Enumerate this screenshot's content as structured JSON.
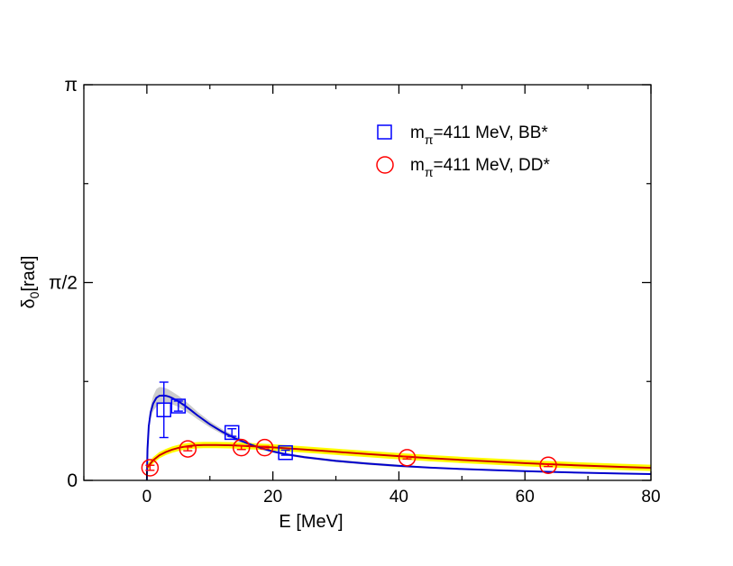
{
  "chart_data": {
    "type": "scatter",
    "title": "",
    "xlabel": "E [MeV]",
    "ylabel": {
      "main": "δ",
      "sub": "0",
      "unit": "[rad]"
    },
    "xlim": [
      -10,
      80
    ],
    "ylim": [
      0,
      3.14159
    ],
    "xticks": [
      0,
      20,
      40,
      60,
      80
    ],
    "xtick_labels": [
      "0",
      "20",
      "40",
      "60",
      "80"
    ],
    "yticks": [
      0,
      1.5708,
      3.14159
    ],
    "ytick_labels": [
      "0",
      "π/2",
      "π"
    ],
    "grid": false,
    "legend_position": "top-right",
    "series": [
      {
        "name": "BB*",
        "legend": {
          "pre": "m",
          "sub": "π",
          "post": "=411 MeV, BB*"
        },
        "marker": "square",
        "color": "#0000ff",
        "points": [
          {
            "x": 2.7,
            "y": 0.56,
            "yerr": 0.22
          },
          {
            "x": 5.0,
            "y": 0.59,
            "yerr": 0.04
          },
          {
            "x": 13.5,
            "y": 0.38,
            "yerr": 0.03
          },
          {
            "x": 22.0,
            "y": 0.22,
            "yerr": 0.02
          }
        ],
        "fit": {
          "x": [
            0,
            0.1,
            0.3,
            0.6,
            1,
            1.5,
            2,
            2.5,
            3,
            3.5,
            4,
            5,
            6,
            7,
            8,
            10,
            12,
            14,
            16,
            18,
            20,
            22,
            25,
            30,
            35,
            40,
            45,
            50,
            55,
            60,
            65,
            70,
            75,
            80
          ],
          "y": [
            0,
            0.25,
            0.43,
            0.54,
            0.61,
            0.655,
            0.672,
            0.674,
            0.672,
            0.665,
            0.655,
            0.628,
            0.594,
            0.557,
            0.517,
            0.445,
            0.385,
            0.334,
            0.293,
            0.258,
            0.23,
            0.208,
            0.184,
            0.155,
            0.133,
            0.115,
            0.101,
            0.09,
            0.081,
            0.073,
            0.066,
            0.06,
            0.055,
            0.05
          ],
          "band_width": [
            0,
            0.02,
            0.03,
            0.05,
            0.06,
            0.07,
            0.07,
            0.065,
            0.06,
            0.055,
            0.05,
            0.045,
            0.04,
            0.035,
            0.03,
            0.025,
            0.02,
            0.02,
            0.015,
            0.015,
            0.01,
            0.01,
            0.01,
            0.01,
            0.01,
            0.01,
            0.005,
            0.005,
            0.005,
            0.005,
            0.005,
            0.005,
            0.005,
            0.005
          ],
          "color": "#0000cc",
          "band_color": "#cccccc"
        }
      },
      {
        "name": "DD*",
        "legend": {
          "pre": "m",
          "sub": "π",
          "post": "=411 MeV, DD*"
        },
        "marker": "circle",
        "color": "#ff0000",
        "points": [
          {
            "x": 0.5,
            "y": 0.1,
            "yerr": 0.02
          },
          {
            "x": 6.5,
            "y": 0.25,
            "yerr": 0.015
          },
          {
            "x": 15.0,
            "y": 0.26,
            "yerr": 0.015
          },
          {
            "x": 18.7,
            "y": 0.26,
            "yerr": 0.01
          },
          {
            "x": 41.3,
            "y": 0.18,
            "yerr": 0.01
          },
          {
            "x": 63.7,
            "y": 0.12,
            "yerr": 0.01
          }
        ],
        "fit": {
          "x": [
            0,
            0.5,
            1,
            2,
            3,
            4,
            5,
            6,
            7,
            8,
            9,
            10,
            11,
            12,
            13,
            14,
            15,
            17,
            20,
            25,
            30,
            35,
            40,
            45,
            50,
            55,
            60,
            65,
            70,
            75,
            80
          ],
          "y": [
            0.1,
            0.13,
            0.16,
            0.2,
            0.225,
            0.244,
            0.258,
            0.268,
            0.275,
            0.279,
            0.281,
            0.281,
            0.281,
            0.28,
            0.279,
            0.277,
            0.275,
            0.27,
            0.262,
            0.245,
            0.227,
            0.209,
            0.192,
            0.176,
            0.162,
            0.149,
            0.137,
            0.126,
            0.116,
            0.107,
            0.099
          ],
          "band_width": 0.025,
          "color": "#cc0000",
          "band_color": "#ffff00"
        }
      }
    ]
  }
}
